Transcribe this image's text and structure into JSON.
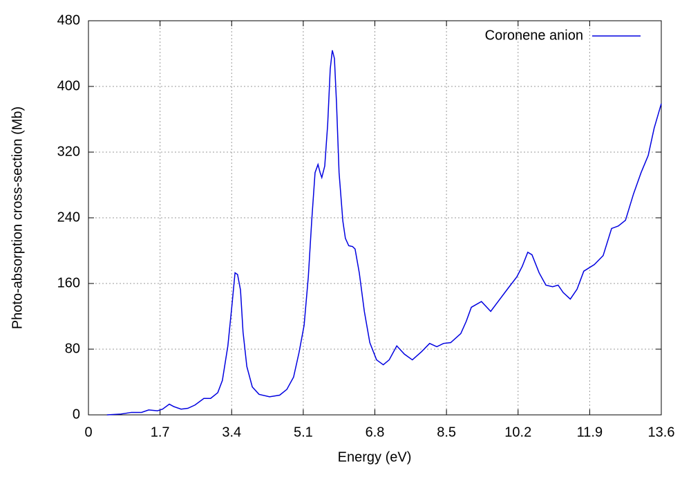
{
  "chart_data": {
    "type": "line",
    "x_label": "Energy (eV)",
    "y_label": "Photo-absorption cross-section (Mb)",
    "xlim": [
      0,
      13.6
    ],
    "xticks": [
      0,
      1.7,
      3.4,
      5.1,
      6.8,
      8.5,
      10.2,
      11.9,
      13.6
    ],
    "ylim": [
      0,
      480
    ],
    "yticks": [
      0,
      80,
      160,
      240,
      320,
      400,
      480
    ],
    "grid": true,
    "legend": "top-right",
    "series": [
      {
        "name": "Coronene anion",
        "color": "#0000e0",
        "x": [
          0.44,
          0.77,
          1.02,
          1.26,
          1.43,
          1.64,
          1.76,
          1.92,
          2.03,
          2.2,
          2.36,
          2.53,
          2.74,
          2.9,
          3.07,
          3.18,
          3.31,
          3.41,
          3.48,
          3.54,
          3.61,
          3.67,
          3.76,
          3.89,
          4.05,
          4.3,
          4.54,
          4.71,
          4.87,
          5.0,
          5.12,
          5.22,
          5.3,
          5.38,
          5.45,
          5.5,
          5.54,
          5.61,
          5.68,
          5.74,
          5.79,
          5.84,
          5.89,
          5.95,
          6.04,
          6.1,
          6.18,
          6.27,
          6.33,
          6.43,
          6.55,
          6.68,
          6.84,
          7.0,
          7.14,
          7.32,
          7.5,
          7.69,
          7.91,
          8.1,
          8.27,
          8.43,
          8.6,
          8.84,
          8.97,
          9.09,
          9.33,
          9.55,
          9.74,
          9.96,
          10.17,
          10.3,
          10.43,
          10.53,
          10.7,
          10.86,
          11.02,
          11.15,
          11.27,
          11.44,
          11.6,
          11.76,
          12.01,
          12.22,
          12.42,
          12.58,
          12.75,
          12.94,
          13.12,
          13.29,
          13.43,
          13.6
        ],
        "values": [
          0,
          1,
          3,
          3,
          6,
          5,
          7,
          13,
          10,
          7,
          8,
          12,
          20,
          20,
          27,
          42,
          84,
          135,
          173,
          171,
          152,
          101,
          59,
          34,
          25,
          22,
          24,
          31,
          46,
          76,
          109,
          168,
          236,
          295,
          305,
          295,
          289,
          303,
          354,
          421,
          444,
          434,
          379,
          295,
          236,
          215,
          206,
          205,
          202,
          173,
          126,
          88,
          67,
          61,
          67,
          84,
          74,
          67,
          77,
          87,
          83,
          87,
          88,
          99,
          114,
          131,
          138,
          126,
          139,
          154,
          168,
          181,
          198,
          195,
          173,
          158,
          156,
          158,
          149,
          141,
          153,
          175,
          183,
          194,
          227,
          230,
          237,
          269,
          295,
          316,
          349,
          379
        ]
      }
    ]
  }
}
